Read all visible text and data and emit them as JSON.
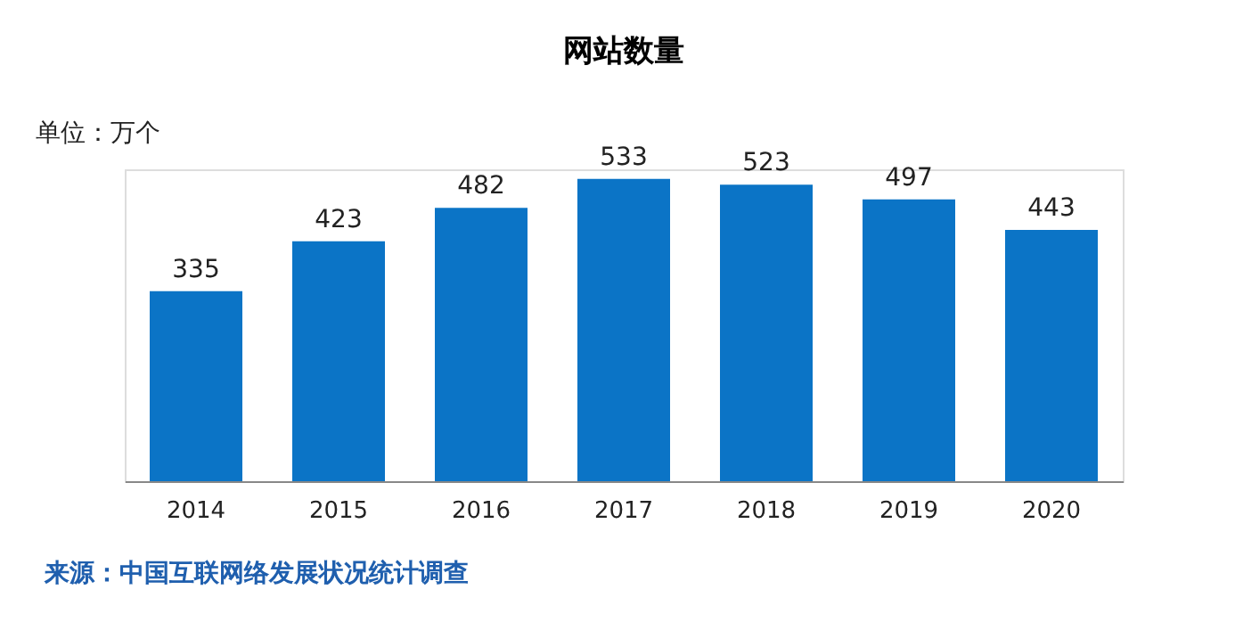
{
  "chart_data": {
    "type": "bar",
    "title": "网站数量",
    "categories": [
      "2014",
      "2015",
      "2016",
      "2017",
      "2018",
      "2019",
      "2020"
    ],
    "values": [
      335,
      423,
      482,
      533,
      523,
      497,
      443
    ],
    "color": "#0b74c6",
    "data_labels": true,
    "grid": false,
    "annotations": [
      "单位：万个",
      "来源：中国互联网络发展状况统计调查"
    ]
  }
}
